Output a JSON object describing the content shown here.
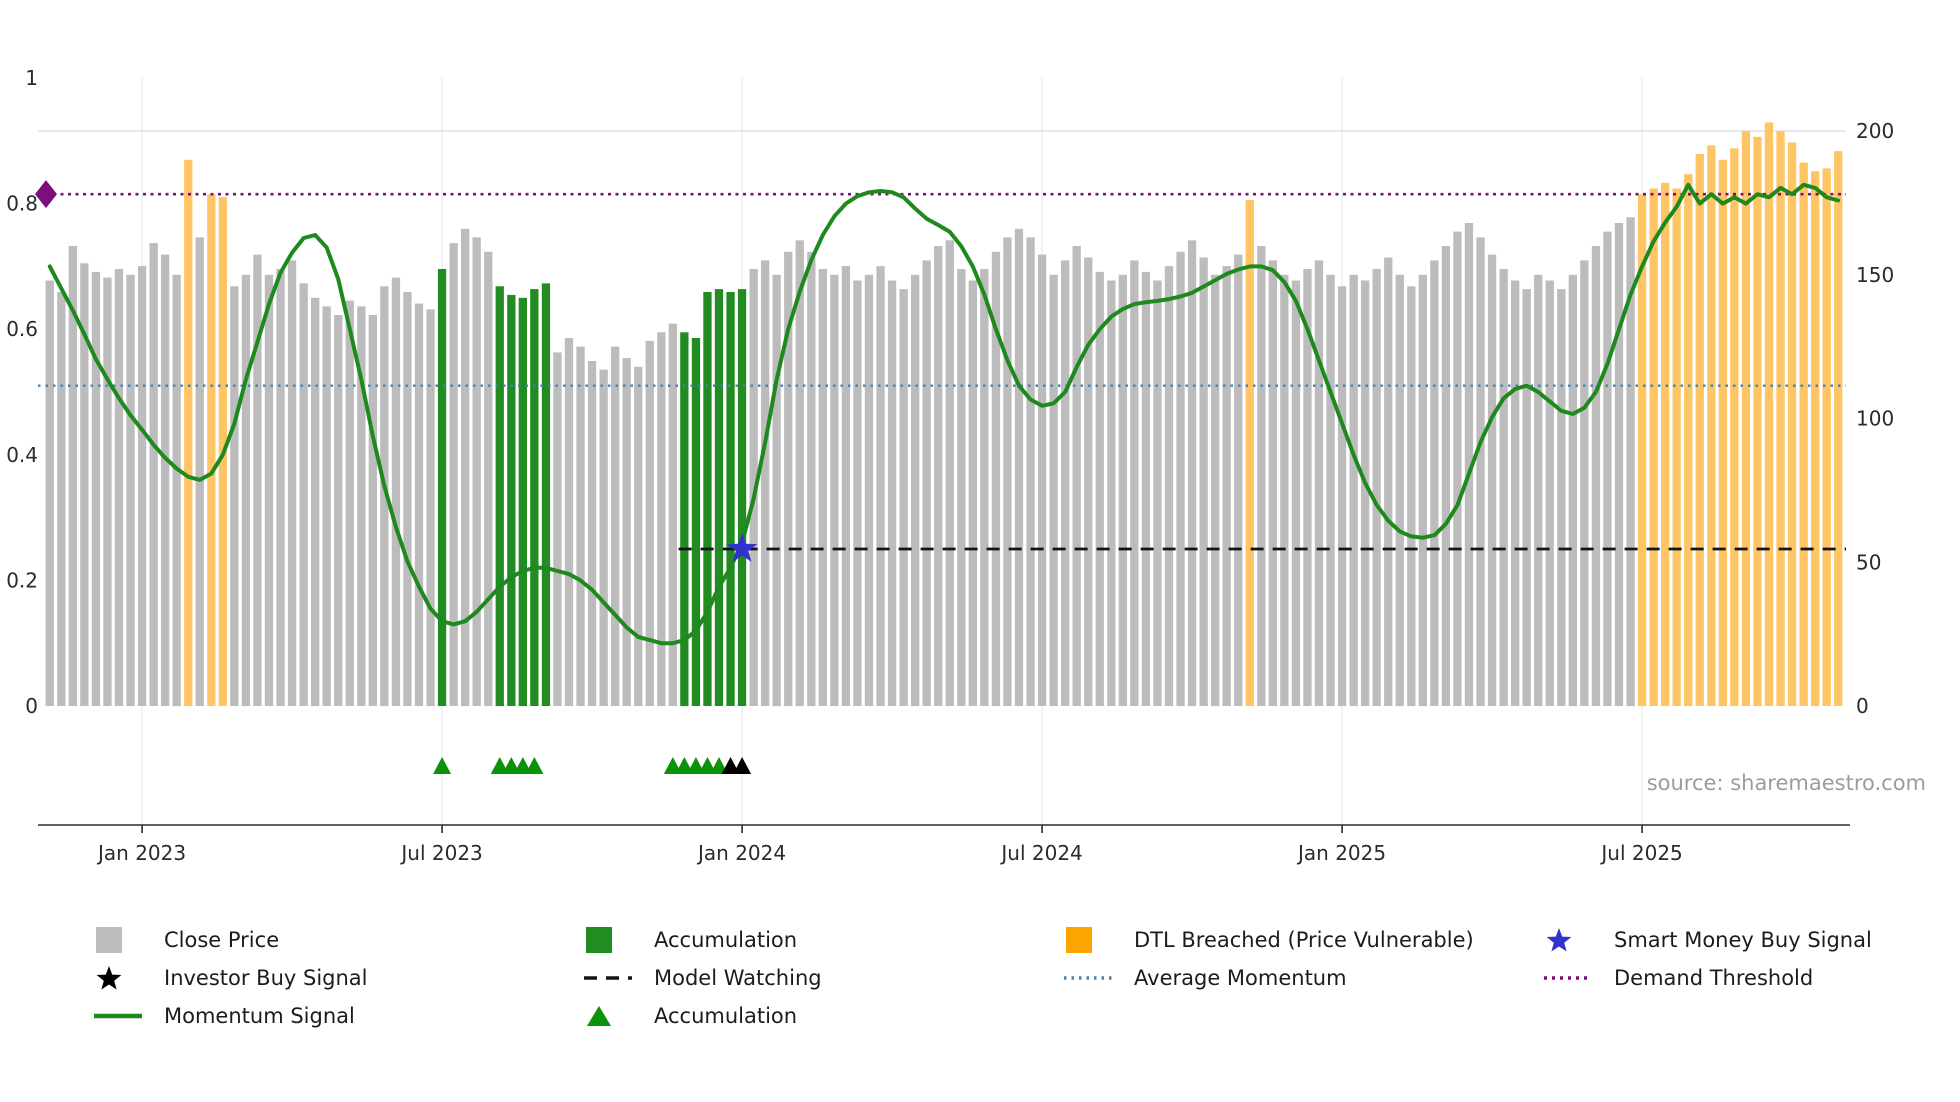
{
  "meta": {
    "source_text": "source: sharemaestro.com"
  },
  "colors": {
    "close_bar": "#bcbcbc",
    "accumulation_bar": "#228b22",
    "dtl_bar": "#ffc564",
    "dtl_legend": "#ffa500",
    "momentum_line": "#1e8a1e",
    "average_momentum": "#4682b4",
    "demand_threshold": "#7b0f7b",
    "model_watching": "#141414",
    "smart_money_star": "#3232cc",
    "investor_triangle": "#000000",
    "accumulation_triangle": "#0a930a",
    "grid_vertical": "#e5eaf3",
    "grid_horizontal": "#dcdcdc",
    "axis": "#2b2b2b"
  },
  "legend": {
    "items": [
      {
        "label": "Close Price"
      },
      {
        "label": "Investor Buy Signal"
      },
      {
        "label": "Momentum Signal"
      },
      {
        "label": "Accumulation"
      },
      {
        "label": "Model Watching"
      },
      {
        "label": "Accumulation"
      },
      {
        "label": "DTL Breached (Price Vulnerable)"
      },
      {
        "label": "Average Momentum"
      },
      {
        "label": "Smart Money Buy Signal"
      },
      {
        "label": "Demand Threshold"
      }
    ]
  },
  "chart_data": {
    "type": "bar",
    "title": "",
    "xlabel": "",
    "ylabel_left": "",
    "ylabel_right": "",
    "left_axis_range": [
      0,
      1
    ],
    "right_axis_range": [
      0,
      200
    ],
    "grid": "light",
    "legend_position": "bottom",
    "axes": {
      "left_tick_values": [
        0,
        0.2,
        0.4,
        0.6,
        0.8,
        1
      ],
      "left_tick_labels": [
        "0",
        "0.2",
        "0.4",
        "0.6",
        "0.8",
        "1"
      ],
      "right_tick_values": [
        0,
        50,
        100,
        150,
        200
      ],
      "right_tick_labels": [
        "0",
        "50",
        "100",
        "150",
        "200"
      ],
      "x_tick_labels": [
        "Jan 2023",
        "Jul 2023",
        "Jan 2024",
        "Jul 2024",
        "Jan 2025",
        "Jul 2025"
      ],
      "x_tick_indices": [
        8,
        34,
        60,
        86,
        112,
        138
      ]
    },
    "bars": {
      "series_name": "Close Price (weekly, right axis)",
      "values": [
        148,
        144,
        160,
        154,
        151,
        149,
        152,
        150,
        153,
        161,
        157,
        150,
        190,
        163,
        178,
        177,
        146,
        150,
        157,
        150,
        152,
        155,
        147,
        142,
        139,
        136,
        141,
        139,
        136,
        146,
        149,
        144,
        140,
        138,
        152,
        161,
        166,
        163,
        158,
        146,
        143,
        142,
        145,
        147,
        123,
        128,
        125,
        120,
        117,
        125,
        121,
        118,
        127,
        130,
        133,
        130,
        128,
        144,
        145,
        144,
        145,
        152,
        155,
        150,
        158,
        162,
        158,
        152,
        150,
        153,
        148,
        150,
        153,
        148,
        145,
        150,
        155,
        160,
        162,
        152,
        148,
        152,
        158,
        163,
        166,
        163,
        157,
        150,
        155,
        160,
        156,
        151,
        148,
        150,
        155,
        151,
        148,
        153,
        158,
        162,
        156,
        150,
        153,
        157,
        176,
        160,
        155,
        150,
        148,
        152,
        155,
        150,
        146,
        150,
        148,
        152,
        156,
        150,
        146,
        150,
        155,
        160,
        165,
        168,
        163,
        157,
        152,
        148,
        145,
        150,
        148,
        145,
        150,
        155,
        160,
        165,
        168,
        170,
        178,
        180,
        182,
        180,
        185,
        192,
        195,
        190,
        194,
        200,
        198,
        203,
        200,
        196,
        189,
        186,
        187,
        193
      ],
      "accumulation_indices": [
        34,
        39,
        40,
        41,
        42,
        43,
        55,
        56,
        57,
        58,
        59,
        60
      ],
      "dtl_indices": [
        12,
        14,
        15,
        104,
        138,
        139,
        140,
        141,
        142,
        143,
        144,
        145,
        146,
        147,
        148,
        149,
        150,
        151,
        152,
        153,
        154,
        155
      ]
    },
    "momentum": {
      "series_name": "Momentum Signal (left axis)",
      "values": [
        0.7,
        0.665,
        0.63,
        0.592,
        0.552,
        0.52,
        0.49,
        0.463,
        0.44,
        0.416,
        0.395,
        0.378,
        0.365,
        0.36,
        0.37,
        0.4,
        0.45,
        0.52,
        0.58,
        0.64,
        0.69,
        0.722,
        0.745,
        0.75,
        0.73,
        0.68,
        0.6,
        0.52,
        0.43,
        0.35,
        0.285,
        0.23,
        0.19,
        0.155,
        0.135,
        0.13,
        0.135,
        0.15,
        0.17,
        0.19,
        0.205,
        0.215,
        0.22,
        0.22,
        0.215,
        0.21,
        0.2,
        0.185,
        0.165,
        0.145,
        0.125,
        0.11,
        0.105,
        0.1,
        0.1,
        0.105,
        0.12,
        0.15,
        0.19,
        0.22,
        0.26,
        0.33,
        0.42,
        0.52,
        0.6,
        0.66,
        0.71,
        0.75,
        0.78,
        0.8,
        0.812,
        0.818,
        0.82,
        0.818,
        0.81,
        0.792,
        0.776,
        0.766,
        0.755,
        0.732,
        0.7,
        0.655,
        0.6,
        0.55,
        0.51,
        0.488,
        0.478,
        0.482,
        0.5,
        0.54,
        0.575,
        0.6,
        0.62,
        0.632,
        0.64,
        0.643,
        0.645,
        0.648,
        0.652,
        0.658,
        0.668,
        0.678,
        0.688,
        0.695,
        0.7,
        0.7,
        0.694,
        0.675,
        0.645,
        0.6,
        0.55,
        0.5,
        0.45,
        0.4,
        0.355,
        0.32,
        0.295,
        0.278,
        0.27,
        0.268,
        0.272,
        0.29,
        0.32,
        0.37,
        0.42,
        0.46,
        0.49,
        0.505,
        0.51,
        0.5,
        0.485,
        0.47,
        0.465,
        0.475,
        0.5,
        0.545,
        0.6,
        0.655,
        0.7,
        0.74,
        0.77,
        0.795,
        0.83,
        0.8,
        0.815,
        0.8,
        0.81,
        0.8,
        0.815,
        0.81,
        0.825,
        0.815,
        0.83,
        0.825,
        0.81,
        0.805
      ]
    },
    "reference_lines": {
      "demand_threshold": {
        "value": 0.815,
        "full_width": true
      },
      "average_momentum": {
        "value": 0.51,
        "full_width": true
      },
      "model_watching": {
        "value": 0.25,
        "start_index": 55
      }
    },
    "markers": {
      "demand_diamond": {
        "value": 0.815
      },
      "smart_money_star": {
        "index": 60,
        "value": 0.25
      },
      "accumulation_triangle_indices": [
        34,
        39,
        40,
        41,
        42,
        54,
        55,
        56,
        57,
        58
      ],
      "investor_buy_triangle_indices": [
        59,
        60
      ]
    }
  }
}
